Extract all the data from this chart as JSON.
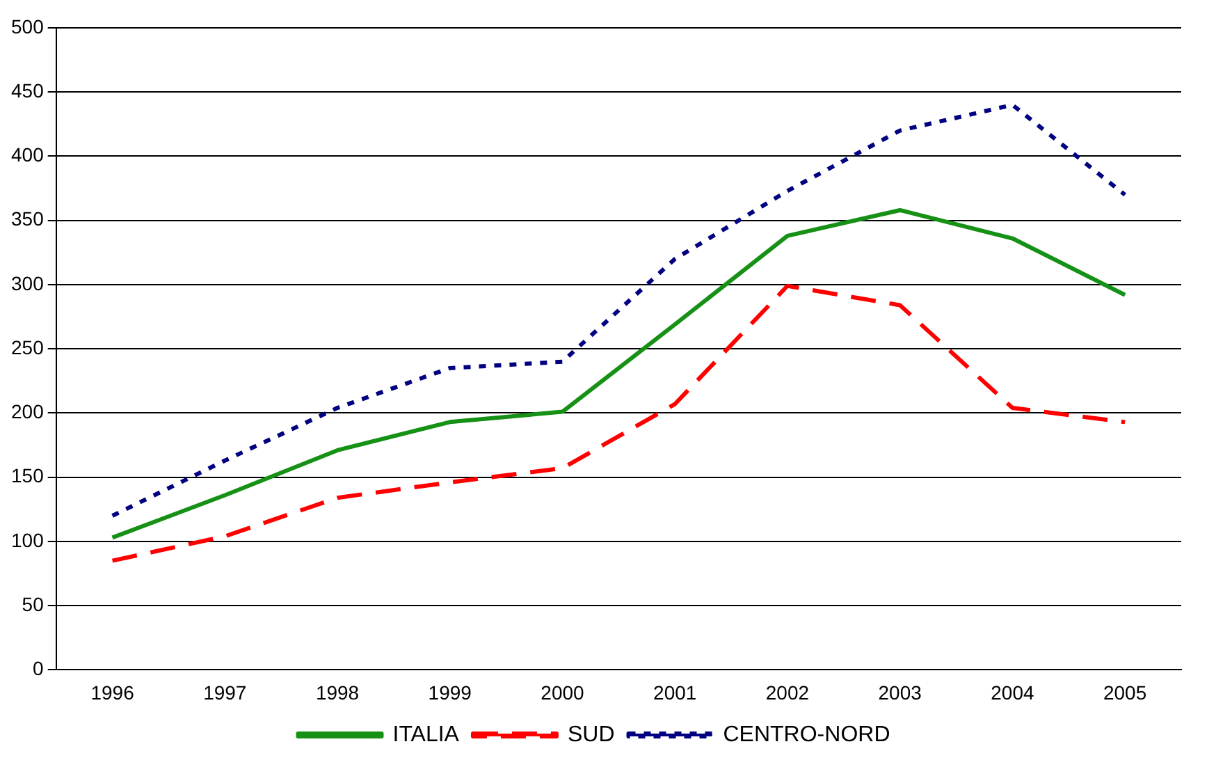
{
  "chart_data": {
    "type": "line",
    "categories": [
      "1996",
      "1997",
      "1998",
      "1999",
      "2000",
      "2001",
      "2002",
      "2003",
      "2004",
      "2005"
    ],
    "series": [
      {
        "name": "ITALIA",
        "color": "#169116",
        "line_style": "solid",
        "values": [
          103,
          136,
          171,
          193,
          201,
          269,
          338,
          358,
          336,
          292
        ]
      },
      {
        "name": "SUD",
        "color": "#ff0000",
        "line_style": "dashed",
        "values": [
          85,
          104,
          134,
          146,
          157,
          207,
          299,
          284,
          204,
          193
        ]
      },
      {
        "name": "CENTRO-NORD",
        "color": "#000080",
        "line_style": "dotted",
        "values": [
          120,
          163,
          204,
          235,
          240,
          320,
          373,
          420,
          440,
          370
        ]
      }
    ],
    "ylim": [
      0,
      500
    ],
    "yticks": [
      0,
      50,
      100,
      150,
      200,
      250,
      300,
      350,
      400,
      450,
      500
    ],
    "grid": "y",
    "legend": "bottom",
    "marker": "none"
  }
}
